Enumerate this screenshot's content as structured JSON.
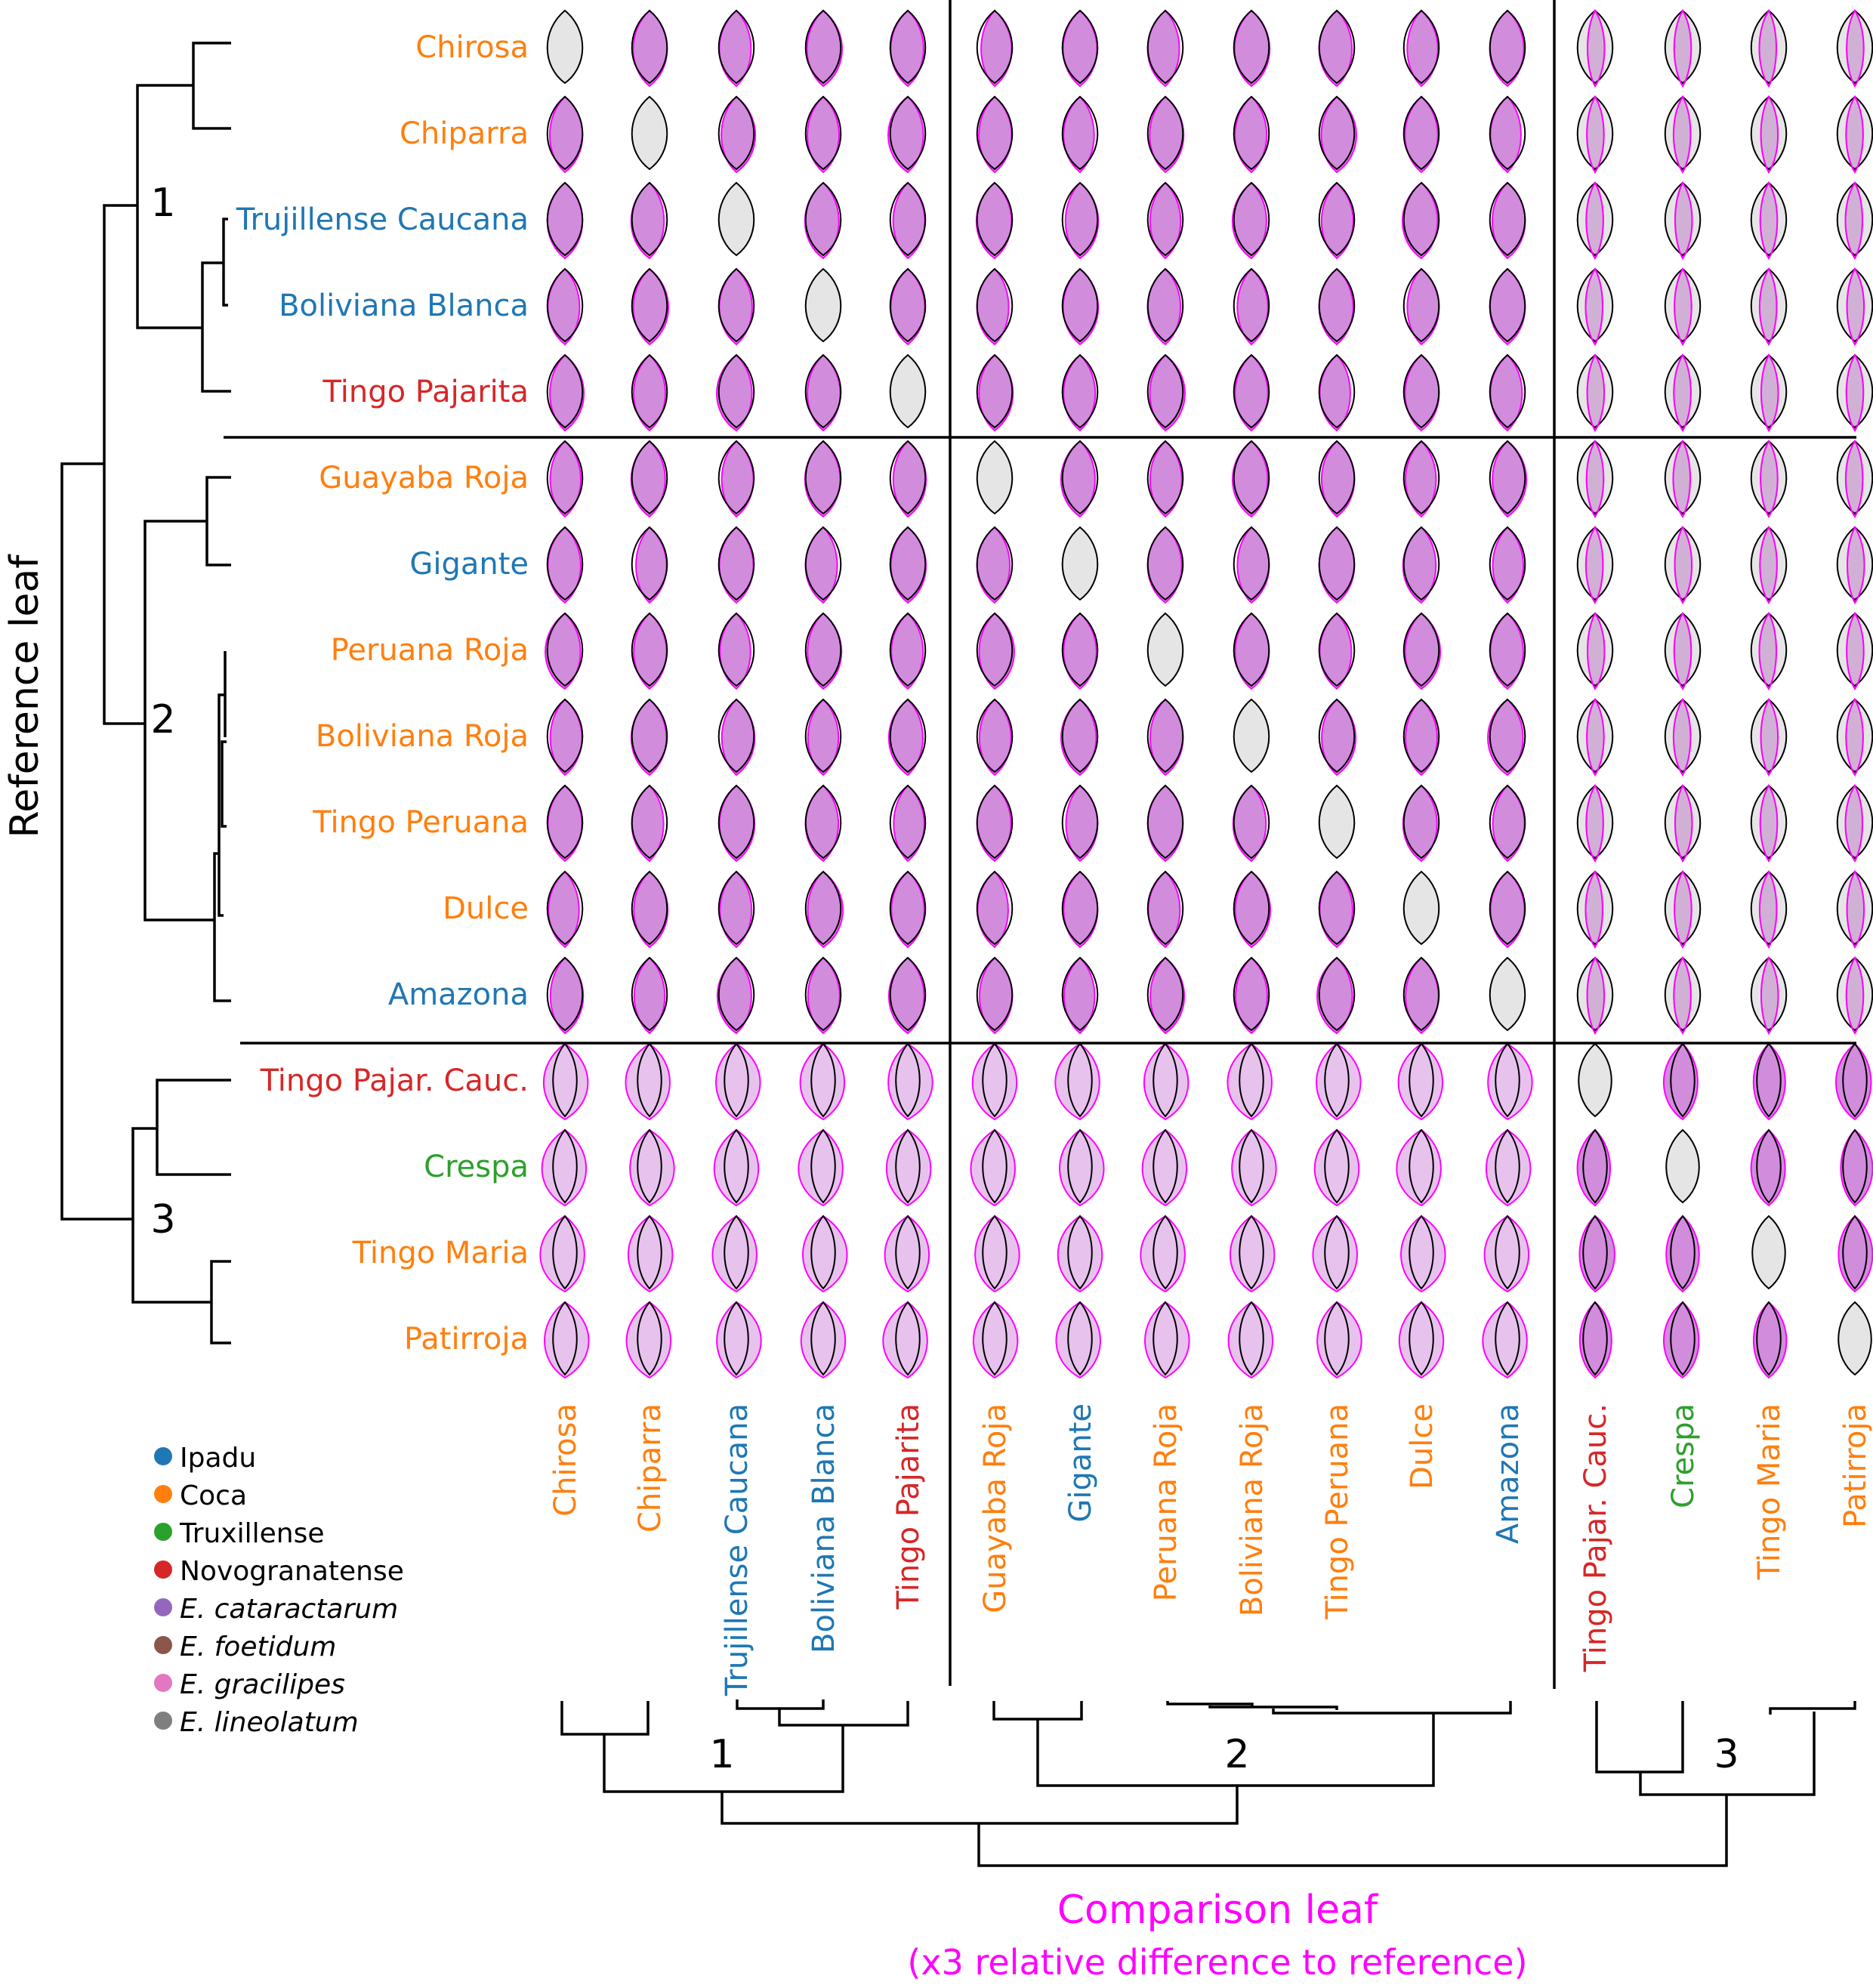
{
  "colors": {
    "Ipadu": "#1f77b4",
    "Coca": "#ff7f0e",
    "Truxillense": "#2ca02c",
    "Novogranatense": "#d62728",
    "E. cataractarum": "#9467bd",
    "E. foetidum": "#8c564b",
    "E. gracilipes": "#e377c2",
    "E. lineolatum": "#7f7f7f",
    "overlay_outline": "#ff00ff",
    "overlay_fill": "#c978d6",
    "reference_fill": "#e5e5e5"
  },
  "y_axis_title": "Reference leaf",
  "x_axis_title": [
    "Comparison leaf",
    "(x3 relative difference to reference)"
  ],
  "clade_labels": [
    "1",
    "2",
    "3"
  ],
  "leaves": [
    {
      "name": "Chirosa",
      "group": "Coca"
    },
    {
      "name": "Chiparra",
      "group": "Coca"
    },
    {
      "name": "Trujillense Caucana",
      "group": "Ipadu"
    },
    {
      "name": "Boliviana Blanca",
      "group": "Ipadu"
    },
    {
      "name": "Tingo Pajarita",
      "group": "Novogranatense"
    },
    {
      "name": "Guayaba Roja",
      "group": "Coca"
    },
    {
      "name": "Gigante",
      "group": "Ipadu"
    },
    {
      "name": "Peruana Roja",
      "group": "Coca"
    },
    {
      "name": "Boliviana Roja",
      "group": "Coca"
    },
    {
      "name": "Tingo Peruana",
      "group": "Coca"
    },
    {
      "name": "Dulce",
      "group": "Coca"
    },
    {
      "name": "Amazona",
      "group": "Ipadu"
    },
    {
      "name": "Tingo Pajar. Cauc.",
      "group": "Novogranatense"
    },
    {
      "name": "Crespa",
      "group": "Truxillense"
    },
    {
      "name": "Tingo Maria",
      "group": "Coca"
    },
    {
      "name": "Patirroja",
      "group": "Coca"
    }
  ],
  "legend": [
    {
      "label": "Ipadu",
      "italic": false
    },
    {
      "label": "Coca",
      "italic": false
    },
    {
      "label": "Truxillense",
      "italic": false
    },
    {
      "label": "Novogranatense",
      "italic": false
    },
    {
      "label": "E. cataractarum",
      "italic": true
    },
    {
      "label": "E. foetidum",
      "italic": true
    },
    {
      "label": "E. gracilipes",
      "italic": true
    },
    {
      "label": "E. lineolatum",
      "italic": true
    }
  ]
}
